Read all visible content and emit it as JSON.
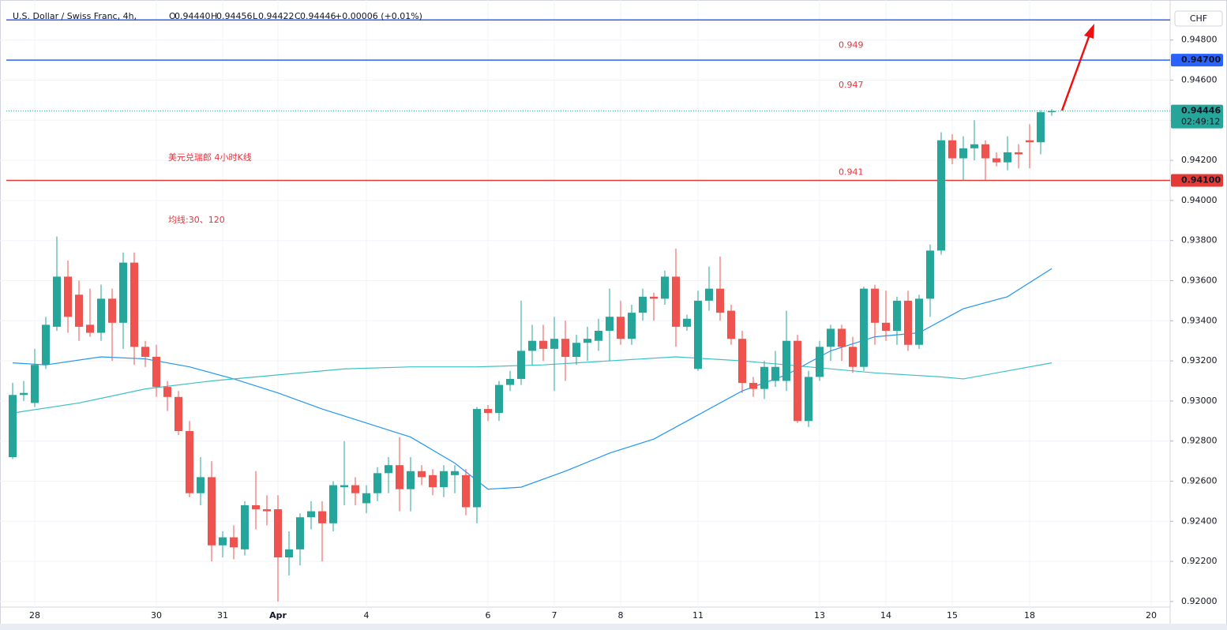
{
  "chart_data": {
    "type": "candlestick",
    "header": {
      "symbol": "U.S. Dollar / Swiss Franc, 4h,",
      "ohlc": [
        {
          "key": "O",
          "value": "0.94440"
        },
        {
          "key": "H",
          "value": "0.94456"
        },
        {
          "key": "L",
          "value": "0.94422"
        },
        {
          "key": "C",
          "value": "0.94446"
        }
      ],
      "change": "+0.00006 (+0.01%)"
    },
    "currency": "CHF",
    "title": "美元兑瑞郎 4小时K线",
    "subtitle": "均线:30、120",
    "up_color": "#26a69a",
    "down_color": "#ef5350",
    "categories": [
      null,
      null,
      "28",
      null,
      null,
      null,
      null,
      null,
      null,
      null,
      null,
      null,
      null,
      "30",
      null,
      null,
      null,
      null,
      null,
      "31",
      null,
      null,
      null,
      null,
      "Apr",
      null,
      null,
      null,
      null,
      null,
      null,
      null,
      "4",
      null,
      null,
      null,
      null,
      null,
      null,
      null,
      null,
      null,
      null,
      "6",
      null,
      null,
      null,
      null,
      null,
      "7",
      null,
      null,
      null,
      null,
      null,
      "8",
      null,
      null,
      null,
      null,
      null,
      null,
      "11",
      null,
      null,
      null,
      null,
      null,
      null,
      null,
      null,
      null,
      null,
      "13",
      null,
      null,
      null,
      null,
      null,
      "14",
      null,
      null,
      null,
      null,
      null,
      "15",
      null,
      null,
      null,
      null,
      null,
      null,
      "18",
      null,
      null,
      null,
      null,
      null,
      null,
      null,
      null,
      null,
      null,
      "20",
      null
    ],
    "open": [
      0.9272,
      0.9303,
      0.9299,
      0.9318,
      0.9337,
      0.9362,
      0.9353,
      0.9338,
      0.9334,
      0.9351,
      0.9339,
      0.9369,
      0.9327,
      0.9322,
      0.9307,
      0.9302,
      0.9285,
      0.9254,
      0.9262,
      0.9228,
      0.9232,
      0.9226,
      0.9248,
      0.9246,
      0.9246,
      0.9222,
      0.9226,
      0.9242,
      0.9245,
      0.9239,
      0.9257,
      0.9258,
      0.9249,
      0.9254,
      0.9264,
      0.9268,
      0.9256,
      0.9265,
      0.9263,
      0.9257,
      0.9263,
      0.9263,
      0.9247,
      0.9296,
      0.9294,
      0.9308,
      0.9311,
      0.9325,
      0.933,
      0.9326,
      0.9331,
      0.9322,
      0.9329,
      0.933,
      0.9335,
      0.9342,
      0.9331,
      0.9344,
      0.9352,
      0.9351,
      0.9362,
      0.9337,
      0.9316,
      0.935,
      0.9356,
      0.9345,
      0.9331,
      0.9309,
      0.9306,
      0.931,
      0.931,
      0.933,
      0.929,
      0.9312,
      0.9327,
      0.9336,
      0.9327,
      0.9317,
      0.9356,
      0.9339,
      0.9335,
      0.935,
      0.9328,
      0.9351,
      0.9375,
      0.943,
      0.9421,
      0.9426,
      0.9428,
      0.9421,
      0.9419,
      0.9424,
      0.943,
      0.9429,
      0.9444,
      null,
      null,
      null,
      null,
      null,
      null,
      null,
      null,
      null,
      null
    ],
    "high": [
      0.9309,
      0.931,
      0.9326,
      0.9342,
      0.9382,
      0.937,
      0.936,
      0.9356,
      0.9358,
      0.9356,
      0.9374,
      0.9374,
      0.933,
      0.9328,
      0.931,
      0.9305,
      0.929,
      0.9272,
      0.927,
      0.9235,
      0.9238,
      0.925,
      0.9265,
      0.9253,
      0.9253,
      0.9235,
      0.9244,
      0.925,
      0.925,
      0.926,
      0.928,
      0.9262,
      0.9258,
      0.9267,
      0.9272,
      0.9282,
      0.9272,
      0.9268,
      0.9266,
      0.9268,
      0.9268,
      0.9266,
      0.9297,
      0.9298,
      0.931,
      0.9315,
      0.935,
      0.9338,
      0.9338,
      0.9342,
      0.934,
      0.9333,
      0.9337,
      0.9341,
      0.9356,
      0.935,
      0.9348,
      0.9356,
      0.9354,
      0.9365,
      0.9376,
      0.9343,
      0.9355,
      0.9367,
      0.9372,
      0.9348,
      0.9335,
      0.9312,
      0.932,
      0.9325,
      0.9345,
      0.9333,
      0.9315,
      0.933,
      0.9338,
      0.9338,
      0.9332,
      0.9357,
      0.9358,
      0.9355,
      0.9352,
      0.9355,
      0.9353,
      0.9378,
      0.9434,
      0.9433,
      0.9432,
      0.944,
      0.943,
      0.9424,
      0.9432,
      0.9428,
      0.9438,
      0.9445,
      0.94456,
      null,
      null,
      null,
      null,
      null,
      null,
      null,
      null,
      null,
      null
    ],
    "low": [
      0.9271,
      0.93,
      0.9297,
      0.9316,
      0.9335,
      0.9334,
      0.933,
      0.9332,
      0.933,
      0.932,
      0.9326,
      0.9318,
      0.9317,
      0.9302,
      0.9295,
      0.9283,
      0.9252,
      0.9248,
      0.922,
      0.9222,
      0.9221,
      0.9223,
      0.9236,
      0.9238,
      0.92,
      0.9213,
      0.9218,
      0.9236,
      0.922,
      0.9235,
      0.9248,
      0.9248,
      0.9244,
      0.925,
      0.9254,
      0.9245,
      0.9245,
      0.9258,
      0.9253,
      0.9252,
      0.9254,
      0.9243,
      0.9239,
      0.929,
      0.929,
      0.9305,
      0.9308,
      0.9318,
      0.932,
      0.9305,
      0.931,
      0.9318,
      0.932,
      0.9325,
      0.932,
      0.9328,
      0.9328,
      0.934,
      0.934,
      0.9348,
      0.9327,
      0.9335,
      0.9315,
      0.9345,
      0.934,
      0.9328,
      0.9304,
      0.9302,
      0.9301,
      0.9307,
      0.9305,
      0.9289,
      0.9287,
      0.931,
      0.932,
      0.932,
      0.9314,
      0.9315,
      0.9328,
      0.933,
      0.9328,
      0.9325,
      0.9326,
      0.9342,
      0.9373,
      0.9418,
      0.941,
      0.942,
      0.941,
      0.9417,
      0.9415,
      0.9416,
      0.9416,
      0.9423,
      0.94422,
      null,
      null,
      null,
      null,
      null,
      null,
      null,
      null,
      null,
      null
    ],
    "close": [
      0.9303,
      0.9304,
      0.9318,
      0.9338,
      0.9362,
      0.9342,
      0.9337,
      0.9334,
      0.9351,
      0.9339,
      0.9369,
      0.9327,
      0.9322,
      0.9307,
      0.9302,
      0.9285,
      0.9254,
      0.9262,
      0.9228,
      0.9232,
      0.9227,
      0.9248,
      0.9246,
      0.9245,
      0.9222,
      0.9226,
      0.9242,
      0.9245,
      0.9239,
      0.9258,
      0.9258,
      0.9254,
      0.9254,
      0.9264,
      0.9268,
      0.9256,
      0.9265,
      0.9262,
      0.9257,
      0.9265,
      0.9265,
      0.9247,
      0.9296,
      0.9294,
      0.9308,
      0.9311,
      0.9325,
      0.933,
      0.9326,
      0.9331,
      0.9322,
      0.9329,
      0.9331,
      0.9335,
      0.9342,
      0.9331,
      0.9344,
      0.9352,
      0.9351,
      0.9362,
      0.9337,
      0.9341,
      0.935,
      0.9356,
      0.9344,
      0.9331,
      0.9309,
      0.9306,
      0.9317,
      0.9317,
      0.933,
      0.929,
      0.9312,
      0.9327,
      0.9336,
      0.9327,
      0.9317,
      0.9356,
      0.9339,
      0.9335,
      0.935,
      0.9328,
      0.9351,
      0.9375,
      0.943,
      0.9421,
      0.9426,
      0.9428,
      0.9421,
      0.9419,
      0.9424,
      0.9423,
      0.9429,
      0.9444,
      0.94446,
      null,
      null,
      null,
      null,
      null,
      null,
      null,
      null,
      null,
      null
    ],
    "moving_averages": [
      {
        "color": "#2196f3",
        "x": [
          0,
          3,
          8,
          12,
          16,
          20,
          24,
          28,
          32,
          36,
          40,
          43,
          46,
          50,
          54,
          58,
          62,
          66,
          70,
          74,
          78,
          82,
          86,
          90,
          94
        ],
        "values": [
          0.9319,
          0.9318,
          0.9322,
          0.9321,
          0.9317,
          0.9311,
          0.9304,
          0.9296,
          0.9289,
          0.9282,
          0.9269,
          0.9256,
          0.9257,
          0.9265,
          0.9274,
          0.9281,
          0.9293,
          0.9305,
          0.9313,
          0.9325,
          0.9332,
          0.9334,
          0.9346,
          0.9352,
          0.9366
        ]
      },
      {
        "color": "#3cc1c6",
        "x": [
          0,
          6,
          12,
          18,
          24,
          30,
          36,
          42,
          48,
          54,
          60,
          66,
          72,
          78,
          84,
          86,
          90,
          94
        ],
        "values": [
          0.9294,
          0.9299,
          0.9306,
          0.931,
          0.9313,
          0.9316,
          0.9317,
          0.9317,
          0.9318,
          0.932,
          0.9322,
          0.932,
          0.9317,
          0.9314,
          0.9312,
          0.9311,
          0.9315,
          0.9319
        ]
      }
    ],
    "levels": [
      {
        "value": 0.949,
        "color": "#2962ff",
        "annotation": "0.949"
      },
      {
        "value": 0.947,
        "color": "#2962ff",
        "label": "0.94700",
        "annotation": "0.947"
      },
      {
        "value": 0.941,
        "color": "#e53935",
        "label": "0.94100",
        "annotation": "0.941"
      }
    ],
    "last_price": {
      "value": 0.94446,
      "label": "0.94446",
      "countdown": "02:49:12"
    },
    "ylim": [
      0.91972,
      0.94972
    ],
    "yticks": [
      {
        "value": 0.948,
        "label": "0.94800"
      },
      {
        "value": 0.946,
        "label": "0.94600"
      },
      {
        "value": 0.944,
        "label": "0.94400"
      },
      {
        "value": 0.942,
        "label": "0.94200"
      },
      {
        "value": 0.94,
        "label": "0.94000"
      },
      {
        "value": 0.938,
        "label": "0.93800"
      },
      {
        "value": 0.936,
        "label": "0.93600"
      },
      {
        "value": 0.934,
        "label": "0.93400"
      },
      {
        "value": 0.932,
        "label": "0.93200"
      },
      {
        "value": 0.93,
        "label": "0.93000"
      },
      {
        "value": 0.928,
        "label": "0.92800"
      },
      {
        "value": 0.926,
        "label": "0.92600"
      },
      {
        "value": 0.924,
        "label": "0.92400"
      },
      {
        "value": 0.922,
        "label": "0.92200"
      },
      {
        "value": 0.92,
        "label": "0.92000"
      }
    ],
    "grid": true
  }
}
